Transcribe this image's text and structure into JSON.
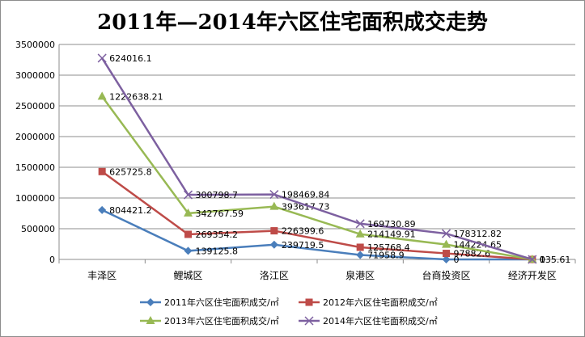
{
  "chart_data": {
    "type": "line",
    "title": "2011年—2014年六区住宅面积成交走势",
    "xlabel": "",
    "ylabel": "",
    "categories": [
      "丰泽区",
      "鲤城区",
      "洛江区",
      "泉港区",
      "台商投资区",
      "经济开发区"
    ],
    "ylim": [
      0,
      3500000
    ],
    "yticks": [
      "0",
      "500000",
      "1000000",
      "1500000",
      "2000000",
      "2500000",
      "3000000",
      "3500000"
    ],
    "grid": true,
    "stacked": true,
    "legend_position": "bottom",
    "series": [
      {
        "name": "2011年六区住宅面积成交/㎡",
        "values": [
          804421.2,
          139125.8,
          239719.5,
          71958.9,
          0,
          0
        ],
        "labels": [
          "804421.2",
          "139125.8",
          "239719.5",
          "71958.9",
          "0",
          "0"
        ],
        "color": "#4a7ebb",
        "marker": "diamond"
      },
      {
        "name": "2012年六区住宅面积成交/㎡",
        "values": [
          625725.8,
          269354.2,
          226399.6,
          125768.4,
          97882.6,
          0
        ],
        "labels": [
          "625725.8",
          "269354.2",
          "226399.6",
          "125768.4",
          "97882.6",
          "0"
        ],
        "color": "#be4b48",
        "marker": "square"
      },
      {
        "name": "2013年六区住宅面积成交/㎡",
        "values": [
          1222638.21,
          342767.59,
          393617.73,
          214149.91,
          144224.65,
          0
        ],
        "labels": [
          "1222638.21",
          "342767.59",
          "393617.73",
          "214149.91",
          "144224.65",
          "0"
        ],
        "color": "#98b954",
        "marker": "triangle"
      },
      {
        "name": "2014年六区住宅面积成交/㎡",
        "values": [
          624016.1,
          300798.7,
          198469.84,
          169730.89,
          178312.82,
          135.61
        ],
        "labels": [
          "624016.1",
          "300798.7",
          "198469.84",
          "169730.89",
          "178312.82",
          "135.61"
        ],
        "color": "#7d60a0",
        "marker": "x"
      }
    ]
  }
}
